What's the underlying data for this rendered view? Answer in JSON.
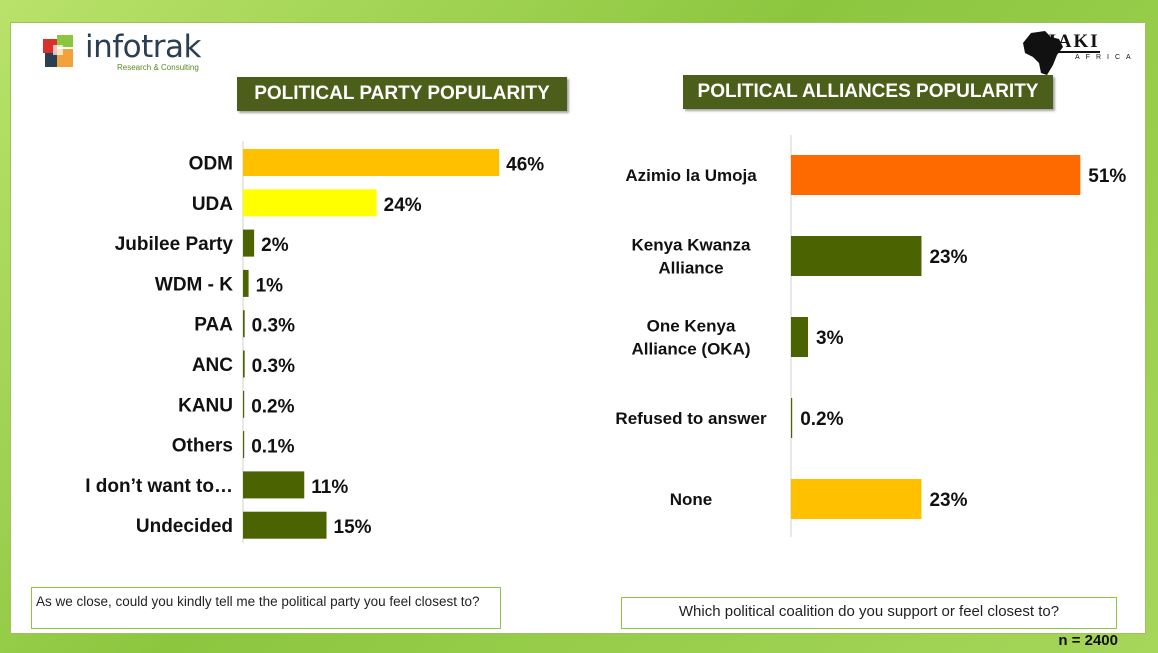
{
  "branding": {
    "left_logo_name": "infotrak",
    "left_logo_sub": "Research & Consulting",
    "right_logo_name": "HAKI",
    "right_logo_sub": "AFRICA"
  },
  "colors": {
    "title_bg": "#4b5e1a",
    "bar_green": "#4b6300",
    "bar_orange_yellow": "#ffc000",
    "bar_yellow": "#ffff00",
    "bar_orange": "#ff6a00"
  },
  "chart_data": [
    {
      "type": "bar",
      "orientation": "horizontal",
      "title": "POLITICAL PARTY  POPULARITY",
      "categories": [
        "ODM",
        "UDA",
        "Jubilee Party",
        "WDM - K",
        "PAA",
        "ANC",
        "KANU",
        "Others",
        "I don’t want to…",
        "Undecided"
      ],
      "values": [
        46,
        24,
        2,
        1,
        0.3,
        0.3,
        0.2,
        0.1,
        11,
        15
      ],
      "value_labels": [
        "46%",
        "24%",
        "2%",
        "1%",
        "0.3%",
        "0.3%",
        "0.2%",
        "0.1%",
        "11%",
        "15%"
      ],
      "bar_colors": [
        "#ffc000",
        "#ffff00",
        "#4b6300",
        "#4b6300",
        "#4b6300",
        "#4b6300",
        "#4b6300",
        "#4b6300",
        "#4b6300",
        "#4b6300"
      ],
      "xlim": [
        0,
        51
      ],
      "grid": false,
      "legend": "none"
    },
    {
      "type": "bar",
      "orientation": "horizontal",
      "title": "POLITICAL ALLIANCES POPULARITY",
      "categories": [
        [
          "Azimio la Umoja"
        ],
        [
          "Kenya Kwanza",
          "Alliance"
        ],
        [
          "One Kenya",
          "Alliance (OKA)"
        ],
        [
          "Refused to answer"
        ],
        [
          "None"
        ]
      ],
      "values": [
        51,
        23,
        3,
        0.2,
        23
      ],
      "value_labels": [
        "51%",
        "23%",
        "3%",
        "0.2%",
        "23%"
      ],
      "bar_colors": [
        "#ff6a00",
        "#4b6300",
        "#4b6300",
        "#4b6300",
        "#ffc000"
      ],
      "xlim": [
        0,
        55
      ],
      "grid": false,
      "legend": "none"
    }
  ],
  "questions": {
    "left": " As we close, could you kindly tell me the political party you feel closest to?",
    "right": "Which political coalition do you support or feel closest to?"
  },
  "sample_size": "n = 2400"
}
